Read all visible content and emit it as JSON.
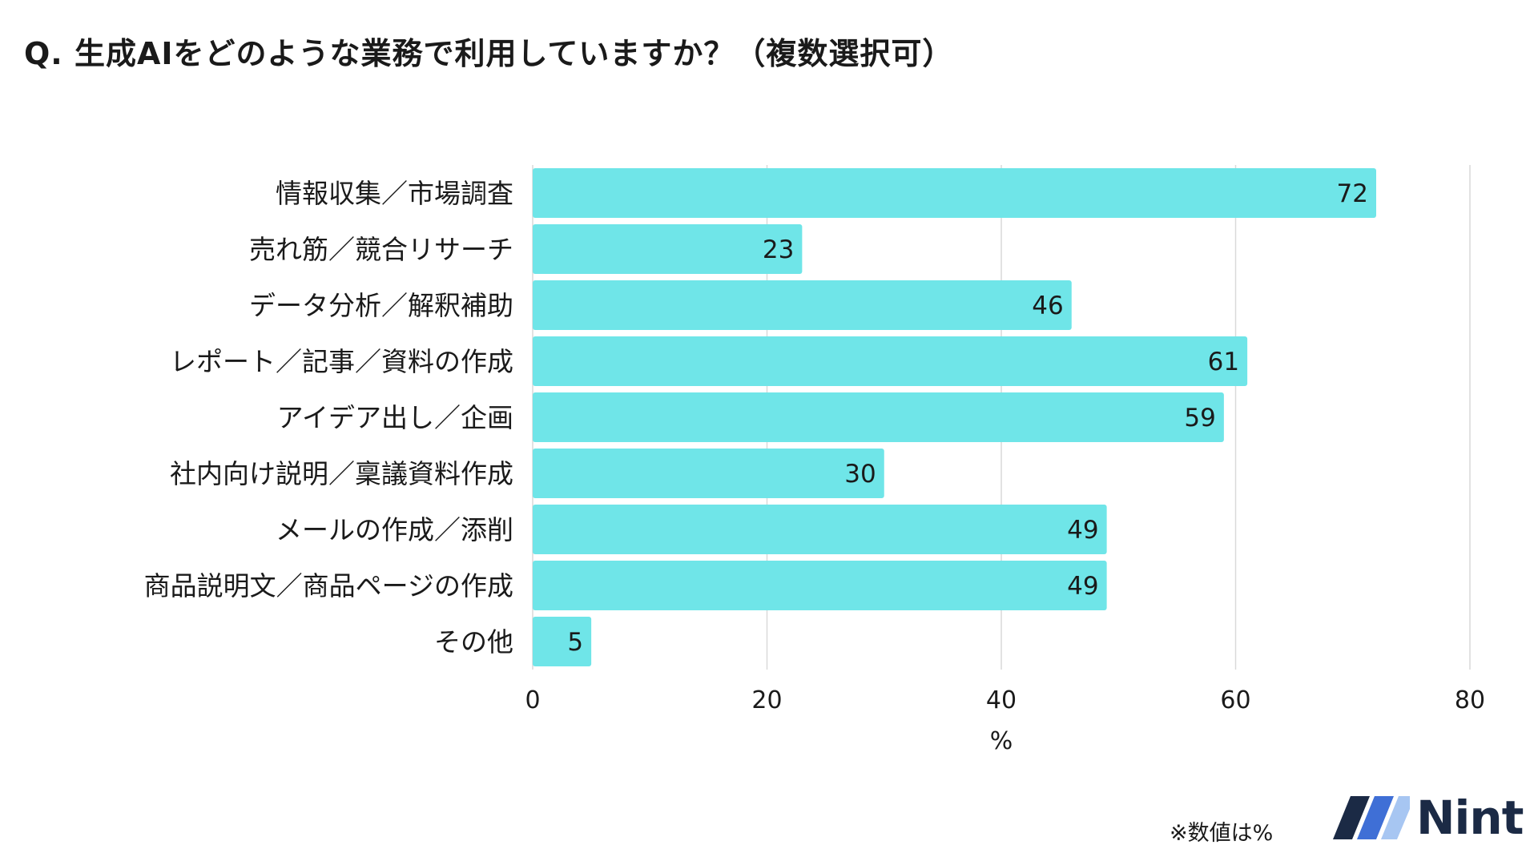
{
  "chart_data": {
    "type": "bar",
    "orientation": "horizontal",
    "title": "Q. 生成AIをどのような業務で利用していますか？（複数選択可）",
    "categories": [
      "情報収集／市場調査",
      "売れ筋／競合リサーチ",
      "データ分析／解釈補助",
      "レポート／記事／資料の作成",
      "アイデア出し／企画",
      "社内向け説明／稟議資料作成",
      "メールの作成／添削",
      "商品説明文／商品ページの作成",
      "その他"
    ],
    "values": [
      72,
      23,
      46,
      61,
      59,
      30,
      49,
      49,
      5
    ],
    "xlabel": "%",
    "ylabel": "",
    "xlim": [
      0,
      80
    ],
    "xticks": [
      "0",
      "20",
      "40",
      "60",
      "80"
    ],
    "grid": true,
    "bar_color": "#6fe5e8",
    "grid_color": "#d9d9d9"
  },
  "footnote": "※数値は%",
  "logo": {
    "text": "Nint",
    "colors": [
      "#1b2a45",
      "#3f6fd6",
      "#a7c6f2"
    ]
  }
}
